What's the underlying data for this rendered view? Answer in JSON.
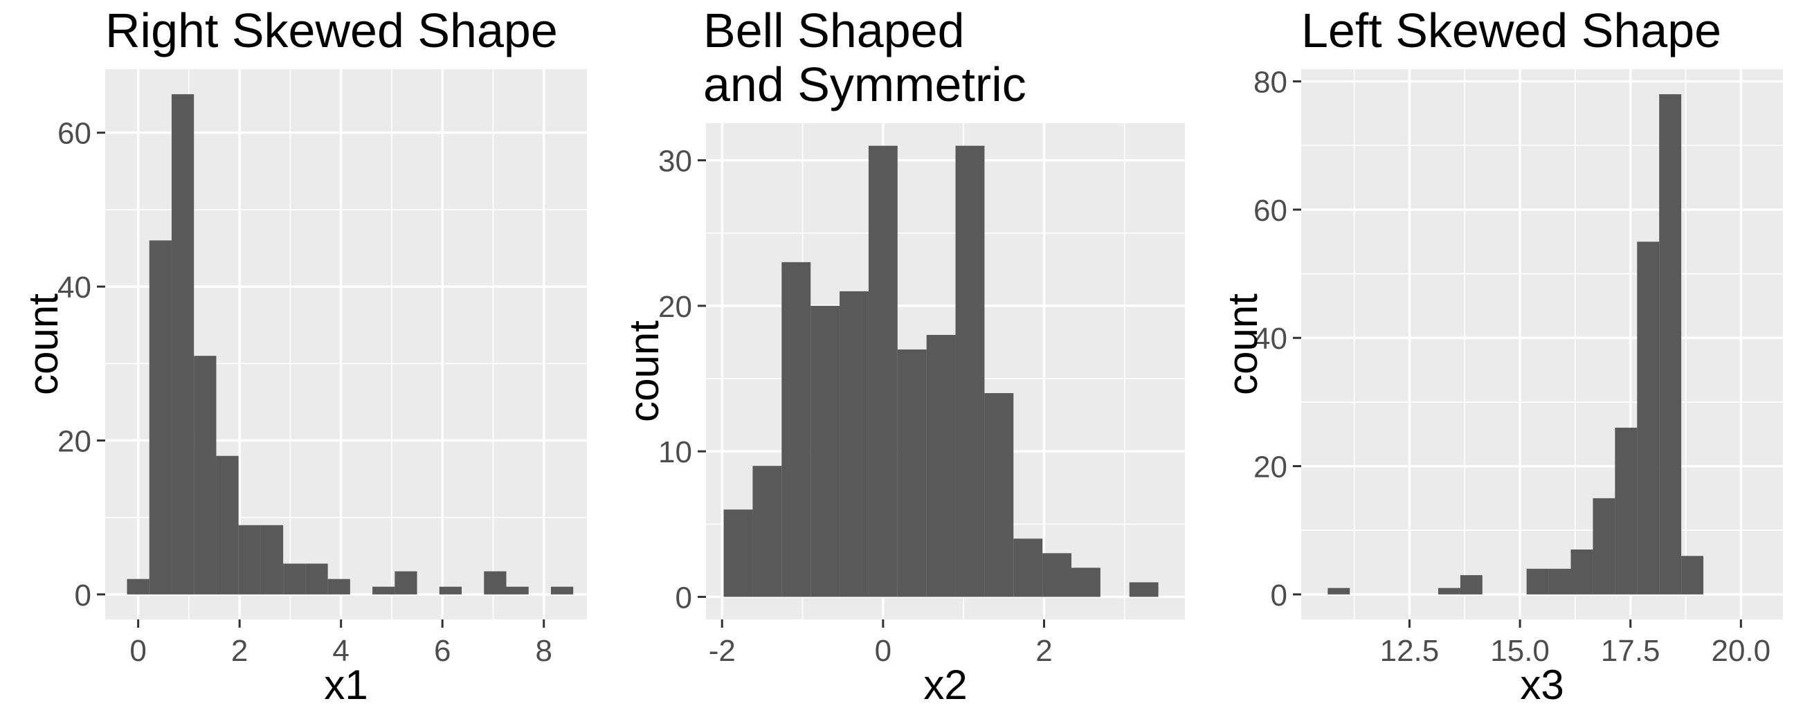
{
  "theme": {
    "panel_bg": "#ebebeb",
    "grid_major": "#ffffff",
    "bar_fill": "#595959",
    "tick_color": "#333333"
  },
  "chart_data": [
    {
      "type": "bar",
      "title": "Right Skewed Shape",
      "xlabel": "x1",
      "ylabel": "count",
      "grid": true,
      "xlim": [
        -0.65,
        8.85
      ],
      "ylim": [
        -3.25,
        68.25
      ],
      "xticks": [
        0,
        2,
        4,
        6,
        8
      ],
      "xtick_labels": [
        "0",
        "2",
        "4",
        "6",
        "8"
      ],
      "yticks": [
        0,
        20,
        40,
        60
      ],
      "ytick_labels": [
        "0",
        "20",
        "40",
        "60"
      ],
      "bin_width": 0.44,
      "bin_centers": [
        0.0,
        0.44,
        0.88,
        1.32,
        1.76,
        2.2,
        2.64,
        3.08,
        3.52,
        3.96,
        4.4,
        4.84,
        5.28,
        5.72,
        6.16,
        6.6,
        7.04,
        7.48,
        7.92,
        8.36
      ],
      "counts": [
        2,
        46,
        65,
        31,
        18,
        9,
        9,
        4,
        4,
        2,
        0,
        1,
        3,
        0,
        1,
        0,
        3,
        1,
        0,
        1
      ]
    },
    {
      "type": "bar",
      "title": "Bell Shaped\nand Symmetric",
      "title_lines": [
        "Bell Shaped",
        "and Symmetric"
      ],
      "xlabel": "x2",
      "ylabel": "count",
      "grid": true,
      "xlim": [
        -2.2,
        3.75
      ],
      "ylim": [
        -1.55,
        32.55
      ],
      "xticks": [
        -2,
        0,
        2
      ],
      "xtick_labels": [
        "-2",
        "0",
        "2"
      ],
      "yticks": [
        0,
        10,
        20,
        30
      ],
      "ytick_labels": [
        "0",
        "10",
        "20",
        "30"
      ],
      "bin_width": 0.36,
      "bin_centers": [
        -1.8,
        -1.44,
        -1.08,
        -0.72,
        -0.36,
        0.0,
        0.36,
        0.72,
        1.08,
        1.44,
        1.8,
        2.16,
        2.52,
        2.88,
        3.24
      ],
      "counts": [
        6,
        9,
        23,
        20,
        21,
        31,
        17,
        18,
        31,
        14,
        4,
        3,
        2,
        0,
        1
      ]
    },
    {
      "type": "bar",
      "title": "Left Skewed Shape",
      "xlabel": "x3",
      "ylabel": "count",
      "grid": true,
      "xlim": [
        10.05,
        20.95
      ],
      "ylim": [
        -3.9,
        81.9
      ],
      "xticks": [
        12.5,
        15.0,
        17.5,
        20.0
      ],
      "xtick_labels": [
        "12.5",
        "15.0",
        "17.5",
        "20.0"
      ],
      "yticks": [
        0,
        20,
        40,
        60,
        80
      ],
      "ytick_labels": [
        "0",
        "20",
        "40",
        "60",
        "80"
      ],
      "bin_width": 0.5,
      "bin_centers": [
        10.9,
        11.4,
        11.9,
        12.4,
        12.9,
        13.4,
        13.9,
        14.4,
        14.9,
        15.4,
        15.9,
        16.4,
        16.9,
        17.4,
        17.9,
        18.4,
        18.9,
        19.4,
        19.9
      ],
      "counts": [
        1,
        0,
        0,
        0,
        0,
        1,
        3,
        0,
        0,
        4,
        4,
        7,
        15,
        26,
        55,
        78,
        6,
        0,
        0
      ]
    }
  ]
}
